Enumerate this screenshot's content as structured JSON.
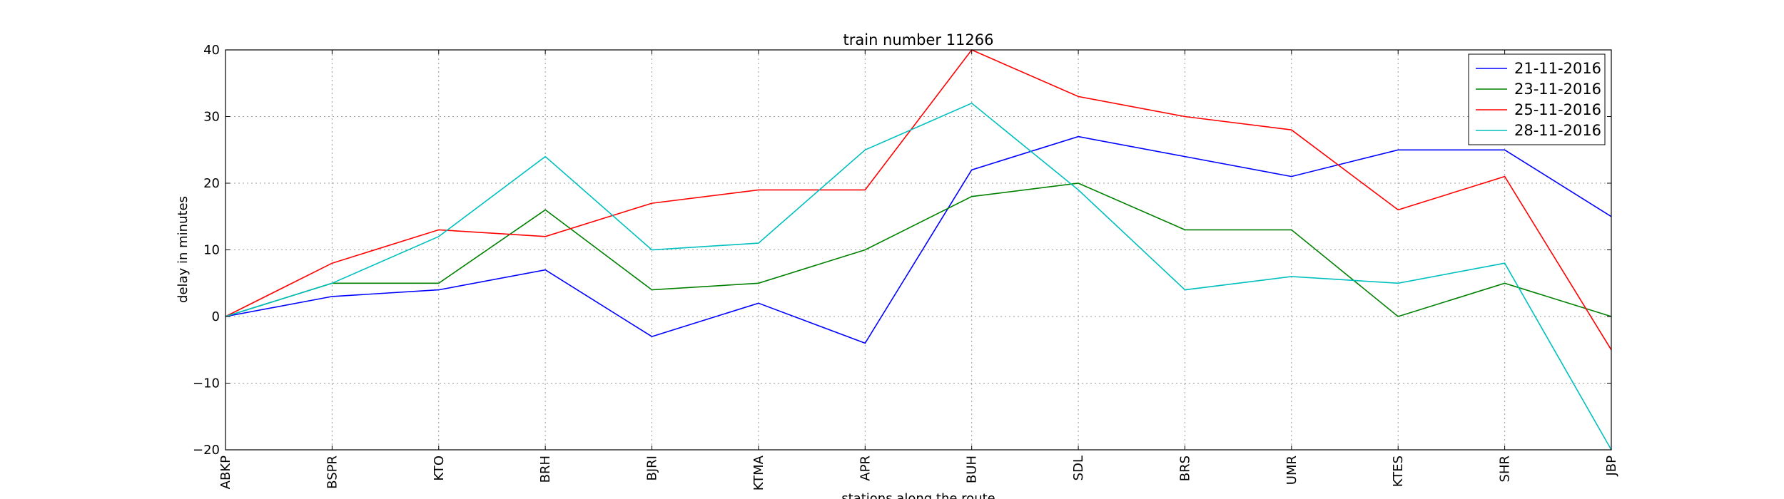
{
  "chart_data": {
    "type": "line",
    "title": "train number 11266",
    "xlabel": "stations along the route",
    "ylabel": "delay in minutes",
    "categories": [
      "ABKP",
      "BSPR",
      "KTO",
      "BRH",
      "BJRI",
      "KTMA",
      "APR",
      "BUH",
      "SDL",
      "BRS",
      "UMR",
      "KTES",
      "SHR",
      "JBP"
    ],
    "ylim": [
      -20,
      40
    ],
    "yticks": [
      -20,
      -10,
      0,
      10,
      20,
      30,
      40
    ],
    "grid": true,
    "legend_position": "top-right",
    "series": [
      {
        "name": "21-11-2016",
        "color": "#0000ff",
        "values": [
          0,
          3,
          4,
          7,
          -3,
          2,
          -4,
          22,
          27,
          24,
          21,
          25,
          25,
          15
        ]
      },
      {
        "name": "23-11-2016",
        "color": "#008000",
        "values": [
          0,
          5,
          5,
          16,
          4,
          5,
          10,
          18,
          20,
          13,
          13,
          0,
          5,
          0
        ]
      },
      {
        "name": "25-11-2016",
        "color": "#ff0000",
        "values": [
          0,
          8,
          13,
          12,
          17,
          19,
          19,
          40,
          33,
          30,
          28,
          16,
          21,
          -5
        ]
      },
      {
        "name": "28-11-2016",
        "color": "#00bfbf",
        "values": [
          0,
          5,
          12,
          24,
          10,
          11,
          25,
          32,
          19,
          4,
          6,
          5,
          8,
          -20
        ]
      }
    ]
  }
}
